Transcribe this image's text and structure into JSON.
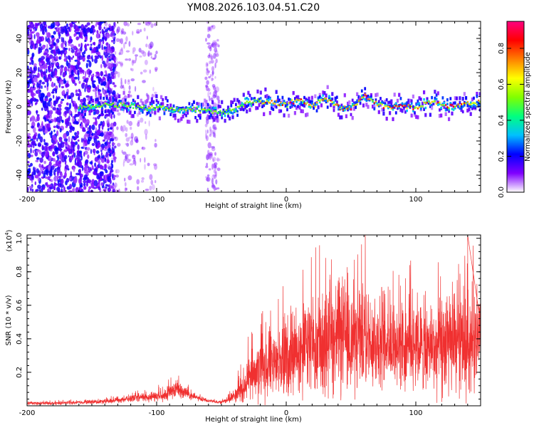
{
  "title": "YM08.2026.103.04.51.C20",
  "chart_data": [
    {
      "type": "heatmap",
      "name": "spectrogram",
      "xlabel": "Height of straight line (km)",
      "ylabel": "Frequency (Hz)",
      "xlim": [
        -200,
        150
      ],
      "ylim": [
        -50,
        50
      ],
      "x_ticks": [
        -200,
        -100,
        0,
        100
      ],
      "x_tick_labels": [
        "-200",
        "-100",
        "0",
        "100"
      ],
      "y_ticks": [
        -40,
        -20,
        0,
        20,
        40
      ],
      "y_tick_labels": [
        "-40",
        "-20",
        "0",
        "20",
        "40"
      ],
      "colorbar": {
        "label": "Normalized spectral amplitude",
        "range": [
          0,
          0.95
        ],
        "ticks": [
          0.0,
          0.2,
          0.4,
          0.6,
          0.8
        ],
        "tick_labels": [
          "0.0",
          "0.2",
          "0.4",
          "0.6",
          "0.8"
        ],
        "colors": [
          "#ffffff",
          "#8000ff",
          "#0000ff",
          "#00c0ff",
          "#00ff80",
          "#80ff00",
          "#ffff00",
          "#ff8000",
          "#ff0000",
          "#ff0080"
        ]
      },
      "ridge": {
        "x": [
          -150,
          -140,
          -130,
          -120,
          -110,
          -100,
          -90,
          -80,
          -70,
          -60,
          -50,
          -40,
          -30,
          -20,
          -10,
          0,
          10,
          20,
          30,
          40,
          50,
          60,
          70,
          80,
          90,
          100,
          110,
          120,
          130,
          140,
          150
        ],
        "freq": [
          0,
          2,
          1,
          0,
          -1,
          0,
          -1,
          -2,
          -2,
          -2,
          -4,
          -2,
          3,
          3,
          3,
          1,
          4,
          0,
          6,
          0,
          -1,
          6,
          2,
          0,
          1,
          -1,
          3,
          1,
          0,
          2,
          2
        ]
      }
    },
    {
      "type": "line",
      "name": "snr",
      "xlabel": "Height of straight line (km)",
      "ylabel": "SNR (10 * v/v)",
      "yscale_label": "(x10",
      "yscale_exponent": "4",
      "yscale_close": ")",
      "xlim": [
        -200,
        150
      ],
      "ylim": [
        0,
        1.02
      ],
      "x_ticks": [
        -200,
        -100,
        0,
        100
      ],
      "x_tick_labels": [
        "-200",
        "-100",
        "0",
        "100"
      ],
      "y_ticks": [
        0.2,
        0.4,
        0.6,
        0.8,
        1.0
      ],
      "y_tick_labels": [
        "0.2",
        "0.4",
        "0.6",
        "0.8",
        "1.0"
      ],
      "series": [
        {
          "name": "SNR",
          "color": "#f03030",
          "envelope_x": [
            -200,
            -180,
            -160,
            -140,
            -125,
            -110,
            -95,
            -85,
            -78,
            -70,
            -60,
            -50,
            -40,
            -35,
            -30,
            -25,
            -20,
            -10,
            0,
            10,
            20,
            30,
            40,
            50,
            60,
            70,
            80,
            90,
            100,
            110,
            120,
            130,
            140,
            150
          ],
          "envelope_mean": [
            0.015,
            0.015,
            0.02,
            0.025,
            0.04,
            0.05,
            0.06,
            0.1,
            0.08,
            0.05,
            0.03,
            0.02,
            0.06,
            0.1,
            0.15,
            0.18,
            0.22,
            0.24,
            0.28,
            0.33,
            0.38,
            0.38,
            0.42,
            0.4,
            0.42,
            0.4,
            0.36,
            0.38,
            0.36,
            0.35,
            0.34,
            0.35,
            0.38,
            0.4
          ],
          "envelope_spread": [
            0.01,
            0.01,
            0.012,
            0.015,
            0.02,
            0.03,
            0.04,
            0.06,
            0.05,
            0.02,
            0.01,
            0.01,
            0.04,
            0.1,
            0.14,
            0.18,
            0.2,
            0.22,
            0.26,
            0.3,
            0.32,
            0.34,
            0.36,
            0.36,
            0.34,
            0.33,
            0.32,
            0.3,
            0.28,
            0.28,
            0.3,
            0.32,
            0.34,
            0.32
          ],
          "peak": {
            "x": 140,
            "y": 1.02
          }
        }
      ]
    }
  ]
}
